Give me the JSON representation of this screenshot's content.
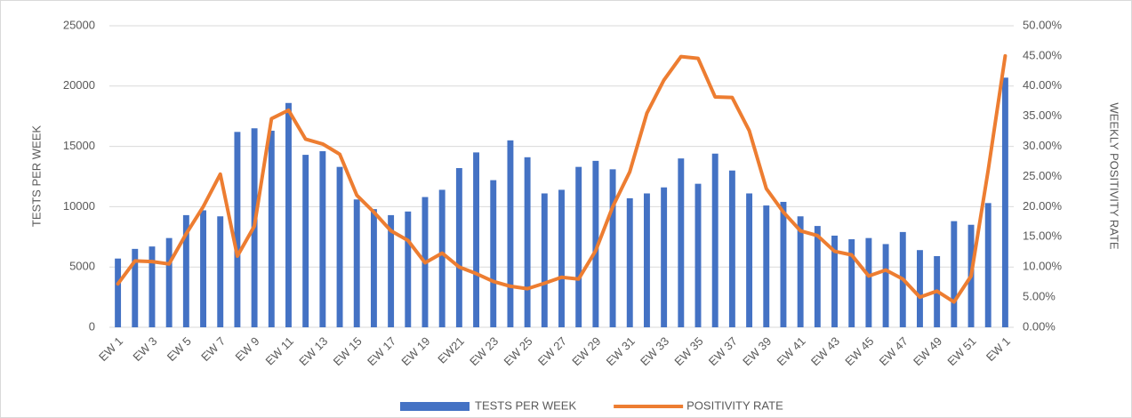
{
  "chart_data": {
    "type": "bar-line",
    "categories": [
      "EW 1",
      null,
      "EW 3",
      null,
      "EW 5",
      null,
      "EW 7",
      null,
      "EW 9",
      null,
      "EW 11",
      null,
      "EW 13",
      null,
      "EW 15",
      null,
      "EW 17",
      null,
      "EW 19",
      null,
      "EW21",
      null,
      "EW 23",
      null,
      "EW 25",
      null,
      "EW 27",
      null,
      "EW 29",
      null,
      "EW 31",
      null,
      "EW 33",
      null,
      "EW 35",
      null,
      "EW 37",
      null,
      "EW 39",
      null,
      "EW 41",
      null,
      "EW 43",
      null,
      "EW 45",
      null,
      "EW 47",
      null,
      "EW 49",
      null,
      "EW 51",
      null,
      "EW 1"
    ],
    "series": [
      {
        "name": "TESTS PER WEEK",
        "type": "bar",
        "color": "#4472c4",
        "values": [
          5700,
          6500,
          6700,
          7400,
          9300,
          9700,
          9200,
          16200,
          16500,
          16300,
          18600,
          14300,
          14600,
          13300,
          10600,
          9800,
          9300,
          9600,
          10800,
          11400,
          13200,
          14500,
          12200,
          15500,
          14100,
          11100,
          11400,
          13300,
          13800,
          13100,
          10700,
          11100,
          11600,
          14000,
          11900,
          14400,
          13000,
          11100,
          10100,
          10400,
          9200,
          8400,
          7600,
          7300,
          7400,
          6900,
          7900,
          6400,
          5900,
          8800,
          8500,
          10300,
          20700
        ]
      },
      {
        "name": "POSITIVITY RATE",
        "type": "line",
        "axis": "y2",
        "color": "#ed7d31",
        "values": [
          7.2,
          11.0,
          10.9,
          10.5,
          15.5,
          20.0,
          25.4,
          11.8,
          16.8,
          34.6,
          36.0,
          31.2,
          30.4,
          28.7,
          21.9,
          19.1,
          16.0,
          14.4,
          10.7,
          12.3,
          10.0,
          8.9,
          7.6,
          6.8,
          6.4,
          7.3,
          8.3,
          8.0,
          12.7,
          20.0,
          25.8,
          35.5,
          41.0,
          44.9,
          44.6,
          38.2,
          38.1,
          32.6,
          23.0,
          19.1,
          16.0,
          15.2,
          12.6,
          12.0,
          8.5,
          9.5,
          8.0,
          5.0,
          6.0,
          4.2,
          8.5,
          26.0,
          45.0
        ]
      }
    ],
    "y_label": "TESTS PER WEEK",
    "y2_label": "WEEKLY POSITIVITY RATE",
    "ylim": [
      0,
      25000
    ],
    "yticks": [
      0,
      5000,
      10000,
      15000,
      20000,
      25000
    ],
    "y2lim": [
      0,
      50
    ],
    "y2ticks": [
      {
        "value": 0,
        "label": "0.00%"
      },
      {
        "value": 5,
        "label": "5.00%"
      },
      {
        "value": 10,
        "label": "10.00%"
      },
      {
        "value": 15,
        "label": "15.00%"
      },
      {
        "value": 20,
        "label": "20.00%"
      },
      {
        "value": 25,
        "label": "25.00%"
      },
      {
        "value": 30,
        "label": "30.00%"
      },
      {
        "value": 35,
        "label": "35.00%"
      },
      {
        "value": 40,
        "label": "40.00%"
      },
      {
        "value": 45,
        "label": "45.00%"
      },
      {
        "value": 50,
        "label": "50.00%"
      }
    ],
    "grid": true,
    "legend": "bottom"
  }
}
